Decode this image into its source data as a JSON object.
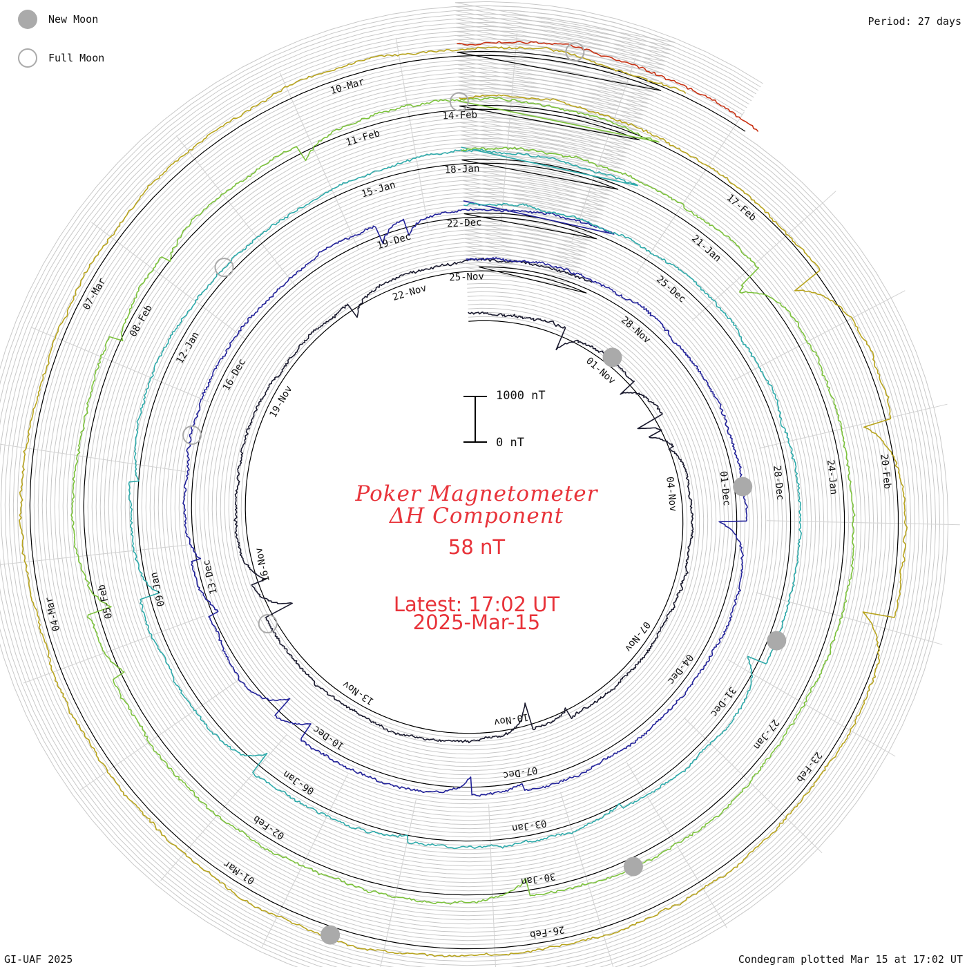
{
  "legend": {
    "new_moon_label": "New Moon",
    "full_moon_label": "Full Moon",
    "new_moon_color": "#aaaaaa",
    "full_moon_color": "#aaaaaa"
  },
  "period_text": "Period: 27 days",
  "footer": {
    "left": "GI-UAF 2025",
    "right": "Condegram plotted Mar 15 at 17:02 UT"
  },
  "center": {
    "title_line1": "Poker Magnetometer",
    "title_line2": "ΔH Component",
    "value_text": "58 nT",
    "latest_text": "Latest: 17:02 UT",
    "date_text": "2025-Mar-15",
    "text_color": "#e8333a"
  },
  "scale_bar": {
    "top_label": "1000 nT",
    "bottom_label": "0 nT"
  },
  "chart_data": {
    "type": "line",
    "title": "Poker Magnetometer ΔH Component",
    "period_days": 27,
    "latest_value_nT": 58,
    "latest_time": "2025-03-15 17:02 UT",
    "scale_nT": [
      0,
      1000
    ],
    "start_date": "2024-10-29",
    "end_date": "2025-03-15",
    "series": [
      {
        "color": "#1a1a2e",
        "date_range": [
          "2024-10-29",
          "2024-11-25"
        ]
      },
      {
        "color": "#22229a",
        "date_range": [
          "2024-11-25",
          "2024-12-22"
        ]
      },
      {
        "color": "#2eaaaa",
        "date_range": [
          "2024-12-22",
          "2025-01-18"
        ]
      },
      {
        "color": "#7cc23c",
        "date_range": [
          "2025-01-18",
          "2025-02-14"
        ]
      },
      {
        "color": "#b8a41e",
        "date_range": [
          "2025-02-14",
          "2025-03-13"
        ]
      },
      {
        "color": "#c83214",
        "date_range": [
          "2025-03-13",
          "2025-03-15"
        ]
      }
    ],
    "tick_labels": [
      [
        "01-Nov",
        "04-Nov",
        "07-Nov",
        "10-Nov",
        "13-Nov",
        "16-Nov",
        "19-Nov",
        "22-Nov",
        "25-Nov"
      ],
      [
        "28-Nov",
        "01-Dec",
        "04-Dec",
        "07-Dec",
        "10-Dec",
        "13-Dec",
        "16-Dec",
        "19-Dec",
        "22-Dec"
      ],
      [
        "25-Dec",
        "28-Dec",
        "31-Dec",
        "03-Jan",
        "06-Jan",
        "09-Jan",
        "12-Jan",
        "15-Jan",
        "18-Jan"
      ],
      [
        "21-Jan",
        "24-Jan",
        "27-Jan",
        "30-Jan",
        "02-Feb",
        "05-Feb",
        "08-Feb",
        "11-Feb",
        "14-Feb"
      ],
      [
        "17-Feb",
        "20-Feb",
        "23-Feb",
        "26-Feb",
        "01-Mar",
        "04-Mar",
        "07-Mar",
        "10-Mar"
      ]
    ],
    "new_moons": [
      "2024-11-01",
      "2024-12-01",
      "2024-12-30",
      "2025-01-29",
      "2025-02-28"
    ],
    "full_moons": [
      "2024-11-15",
      "2024-12-15",
      "2025-01-13",
      "2025-02-12",
      "2025-03-14"
    ]
  }
}
